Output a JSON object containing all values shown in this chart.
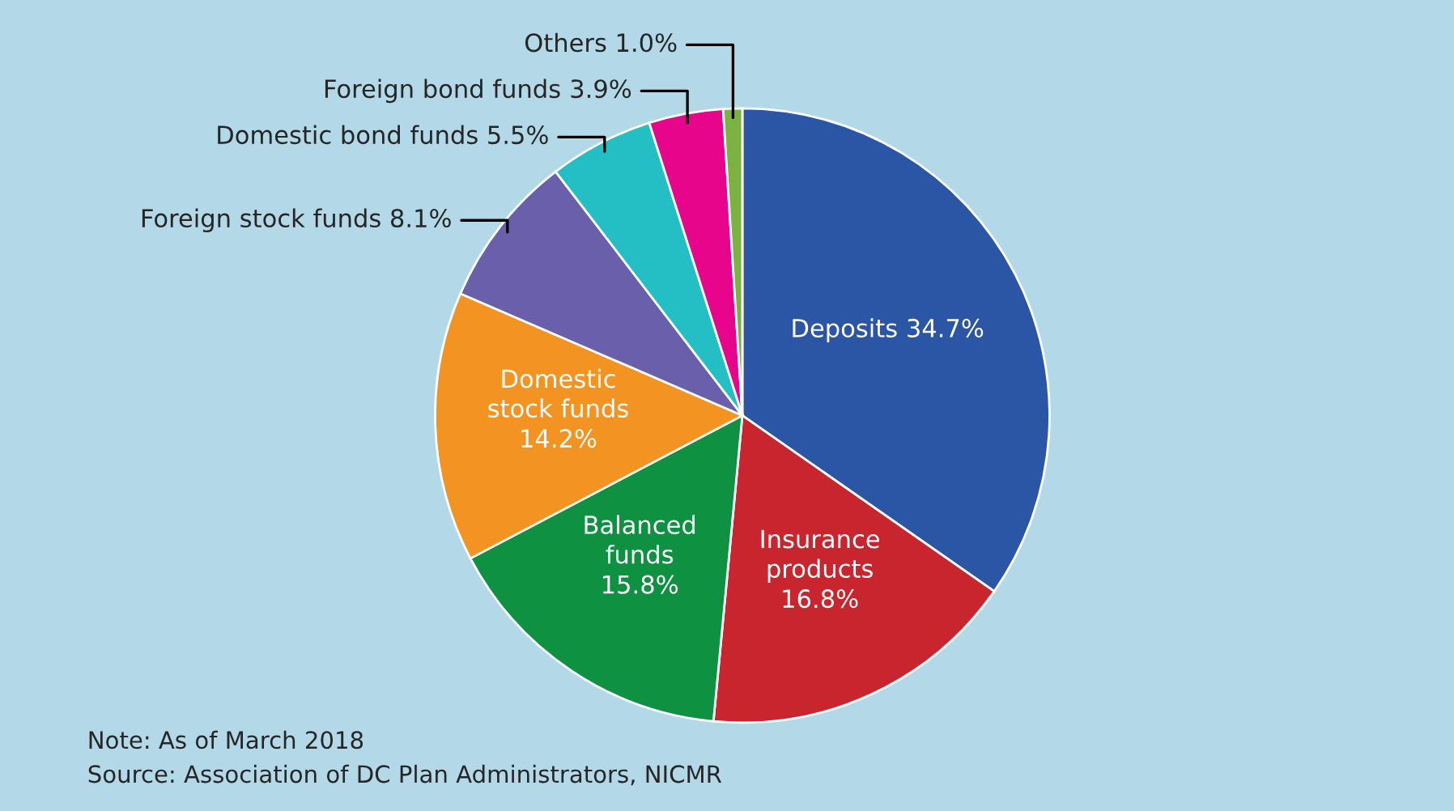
{
  "chart_data": {
    "type": "pie",
    "categories": [
      "Deposits",
      "Insurance\nproducts",
      "Balanced\nfunds",
      "Domestic\nstock funds",
      "Foreign stock funds",
      "Domestic bond funds",
      "Foreign bond funds",
      "Others"
    ],
    "values": [
      34.7,
      16.8,
      15.8,
      14.2,
      8.1,
      5.5,
      3.9,
      1.0
    ],
    "colors": [
      "#2b56a6",
      "#c8252f",
      "#0f9142",
      "#f39321",
      "#6a5fab",
      "#23bfc4",
      "#e6058b",
      "#7ab342"
    ],
    "value_labels": [
      "34.7%",
      "16.8%",
      "15.8%",
      "14.2%",
      "8.1%",
      "5.5%",
      "3.9%",
      "1.0%"
    ],
    "annotations": [
      "Note: As of March 2018",
      "Source: Association of DC Plan Administrators, NICMR"
    ]
  }
}
